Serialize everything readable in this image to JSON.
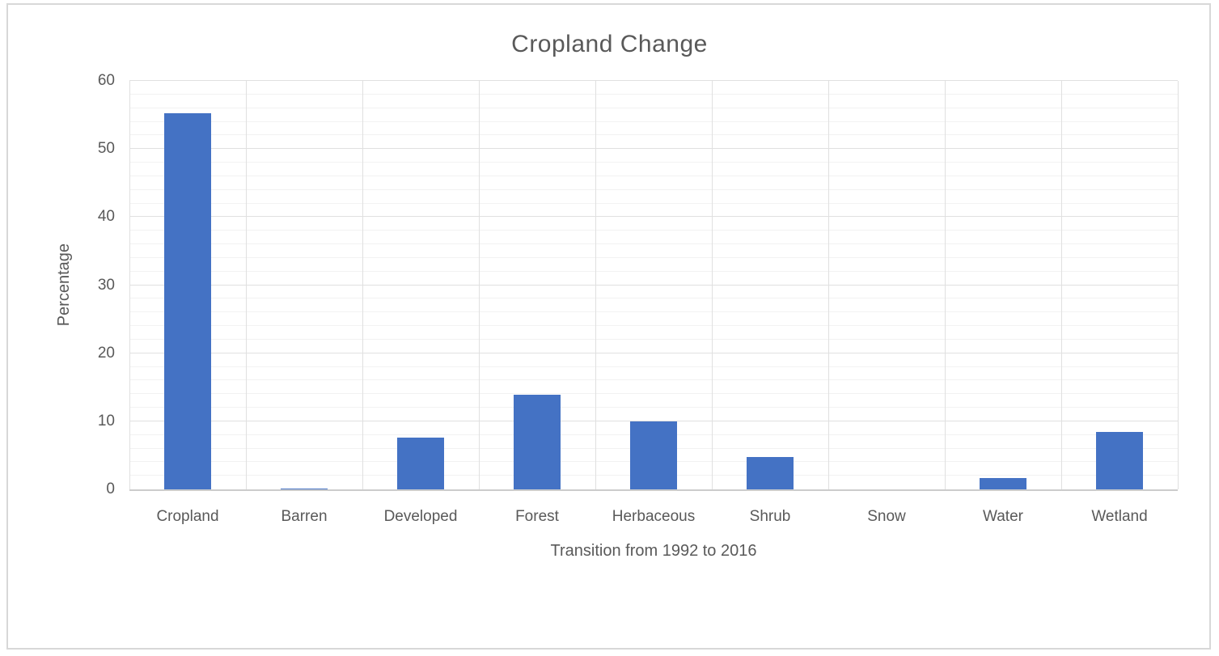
{
  "chart_data": {
    "type": "bar",
    "title": "Cropland Change",
    "xlabel": "Transition from 1992 to 2016",
    "ylabel": "Percentage",
    "categories": [
      "Cropland",
      "Barren",
      "Developed",
      "Forest",
      "Herbaceous",
      "Shrub",
      "Snow",
      "Water",
      "Wetland"
    ],
    "values": [
      55.2,
      0.1,
      7.6,
      13.9,
      10.0,
      4.8,
      0.0,
      1.7,
      8.4
    ],
    "ylim": [
      0,
      60
    ],
    "yticks": [
      0,
      10,
      20,
      30,
      40,
      50,
      60
    ],
    "ytick_major_step": 10,
    "ytick_minor_step": 2,
    "grid": "major and minor horizontal, vertical category boundaries",
    "legend": "none",
    "bar_color": "#4472C4",
    "text_color": "#595959",
    "major_gridline_color": "#e0e0e0",
    "minor_gridline_color": "#f2f2f2",
    "axis_line_color": "#cccccc",
    "border_color": "#d8d8d8"
  }
}
